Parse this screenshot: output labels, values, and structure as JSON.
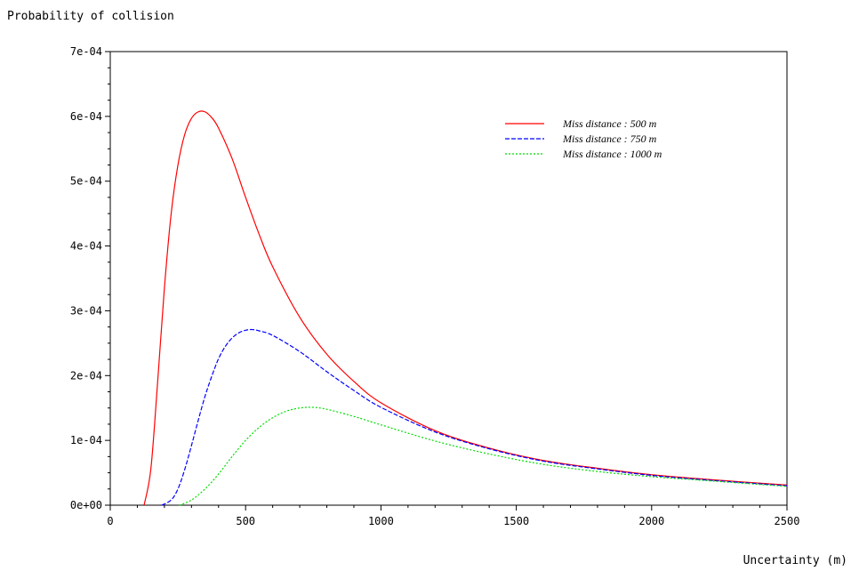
{
  "chart_data": {
    "type": "line",
    "ylabel": "Probability of collision",
    "xlabel": "Uncertainty (m)",
    "xlim": [
      0,
      2500
    ],
    "ylim": [
      0,
      0.0007
    ],
    "x_ticks": [
      {
        "value": 0,
        "label": "0"
      },
      {
        "value": 500,
        "label": "500"
      },
      {
        "value": 1000,
        "label": "1000"
      },
      {
        "value": 1500,
        "label": "1500"
      },
      {
        "value": 2000,
        "label": "2000"
      },
      {
        "value": 2500,
        "label": "2500"
      }
    ],
    "y_ticks": [
      {
        "value": 0,
        "label": "0e+00"
      },
      {
        "value": 0.0001,
        "label": "1e-04"
      },
      {
        "value": 0.0002,
        "label": "2e-04"
      },
      {
        "value": 0.0003,
        "label": "3e-04"
      },
      {
        "value": 0.0004,
        "label": "4e-04"
      },
      {
        "value": 0.0005,
        "label": "5e-04"
      },
      {
        "value": 0.0006,
        "label": "6e-04"
      },
      {
        "value": 0.0007,
        "label": "7e-04"
      }
    ],
    "grid": false,
    "legend_position": "top-right",
    "series": [
      {
        "name": "Miss distance : 500 m",
        "color": "#ff0000",
        "dash": "solid",
        "x": [
          125,
          150,
          175,
          200,
          225,
          250,
          275,
          300,
          325,
          350,
          375,
          400,
          450,
          500,
          550,
          600,
          700,
          800,
          900,
          1000,
          1200,
          1400,
          1600,
          1800,
          2000,
          2200,
          2500
        ],
        "y": [
          0,
          5.6e-05,
          0.00019,
          0.000335,
          0.00045,
          0.000525,
          0.000572,
          0.000597,
          0.000607,
          0.000607,
          0.000598,
          0.000582,
          0.000535,
          0.000475,
          0.000418,
          0.000368,
          0.00029,
          0.000233,
          0.000191,
          0.000158,
          0.000115,
          8.8e-05,
          6.9e-05,
          5.7e-05,
          4.7e-05,
          4e-05,
          3.1e-05
        ]
      },
      {
        "name": "Miss distance : 750 m",
        "color": "#0000ff",
        "dash": "dashed",
        "x": [
          190,
          225,
          250,
          275,
          300,
          325,
          350,
          375,
          400,
          425,
          450,
          475,
          500,
          525,
          550,
          600,
          700,
          800,
          900,
          1000,
          1200,
          1400,
          1600,
          1800,
          2000,
          2200,
          2500
        ],
        "y": [
          0,
          8e-06,
          2.5e-05,
          5.5e-05,
          9.2e-05,
          0.000131,
          0.000168,
          0.000199,
          0.000226,
          0.000245,
          0.000258,
          0.000266,
          0.00027,
          0.000271,
          0.000269,
          0.000262,
          0.000237,
          0.000206,
          0.000177,
          0.000151,
          0.000113,
          8.7e-05,
          6.8e-05,
          5.6e-05,
          4.6e-05,
          3.9e-05,
          3e-05
        ]
      },
      {
        "name": "Miss distance : 1000 m",
        "color": "#00dd00",
        "dash": "dotted",
        "x": [
          255,
          300,
          350,
          400,
          450,
          500,
          550,
          600,
          650,
          700,
          750,
          800,
          900,
          1000,
          1200,
          1400,
          1600,
          1800,
          2000,
          2200,
          2500
        ],
        "y": [
          0,
          8e-06,
          2.5e-05,
          4.8e-05,
          7.5e-05,
          0.0001,
          0.00012,
          0.000135,
          0.000145,
          0.00015,
          0.000151,
          0.000148,
          0.000137,
          0.000124,
          9.9e-05,
          7.9e-05,
          6.3e-05,
          5.2e-05,
          4.4e-05,
          3.8e-05,
          2.9e-05
        ]
      }
    ]
  }
}
